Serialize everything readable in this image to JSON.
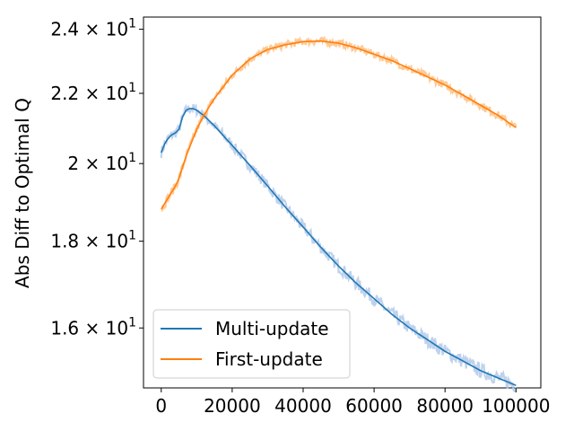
{
  "chart_data": {
    "type": "line",
    "title": "",
    "xlabel": "",
    "ylabel": "Abs Diff to Optimal Q",
    "yscale": "log",
    "xlim": [
      -5000,
      107000
    ],
    "ylim": [
      14.75,
      24.4
    ],
    "grid": false,
    "legend_position": "lower-left",
    "x_ticks": [
      0,
      20000,
      40000,
      60000,
      80000,
      100000
    ],
    "x_tick_labels": [
      "0",
      "20000",
      "40000",
      "60000",
      "80000",
      "100000"
    ],
    "y_ticks": [
      16,
      18,
      20,
      22,
      24
    ],
    "y_tick_labels": [
      {
        "mantissa": "1.6",
        "exp": "1"
      },
      {
        "mantissa": "1.8",
        "exp": "1"
      },
      {
        "mantissa": "2",
        "exp": "1"
      },
      {
        "mantissa": "2.2",
        "exp": "1"
      },
      {
        "mantissa": "2.4",
        "exp": "1"
      }
    ],
    "series": [
      {
        "name": "Multi-update",
        "color": "#1f77b4",
        "band_color": "#aec7e8",
        "x": [
          0,
          1000,
          2000,
          3000,
          4000,
          5000,
          6000,
          7000,
          8000,
          9000,
          10000,
          12000,
          15000,
          20000,
          25000,
          30000,
          35000,
          40000,
          45000,
          50000,
          55000,
          60000,
          65000,
          70000,
          75000,
          80000,
          85000,
          90000,
          95000,
          100000
        ],
        "values": [
          20.3,
          20.55,
          20.7,
          20.8,
          20.85,
          20.95,
          21.3,
          21.5,
          21.55,
          21.55,
          21.5,
          21.35,
          21.05,
          20.5,
          19.95,
          19.4,
          18.85,
          18.35,
          17.85,
          17.4,
          17.0,
          16.65,
          16.3,
          16.0,
          15.75,
          15.5,
          15.3,
          15.1,
          14.95,
          14.8
        ],
        "band_width": 0.15
      },
      {
        "name": "First-update",
        "color": "#ff7f0e",
        "band_color": "#ffbb78",
        "x": [
          0,
          1000,
          2000,
          3000,
          4000,
          5000,
          6000,
          7000,
          8000,
          9000,
          10000,
          12000,
          15000,
          20000,
          25000,
          30000,
          35000,
          40000,
          45000,
          50000,
          55000,
          60000,
          65000,
          70000,
          75000,
          80000,
          85000,
          90000,
          95000,
          100000
        ],
        "values": [
          18.8,
          18.95,
          19.1,
          19.25,
          19.4,
          19.6,
          19.9,
          20.2,
          20.45,
          20.7,
          20.95,
          21.35,
          21.85,
          22.55,
          23.05,
          23.35,
          23.5,
          23.6,
          23.62,
          23.55,
          23.4,
          23.2,
          23.0,
          22.75,
          22.5,
          22.25,
          21.95,
          21.65,
          21.35,
          21.0
        ],
        "band_width": 0.12
      }
    ]
  }
}
